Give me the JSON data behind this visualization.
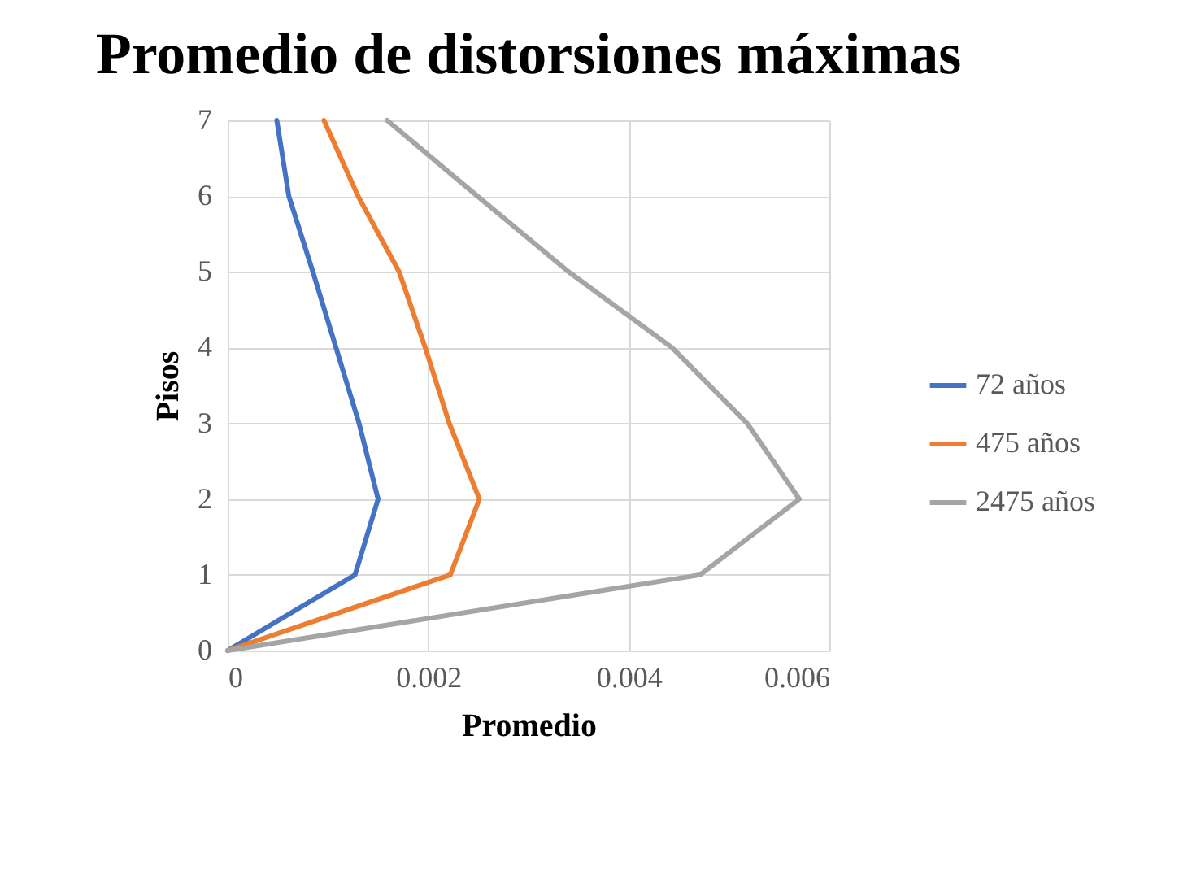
{
  "chart_data": {
    "type": "line",
    "title": "Promedio de distorsiones máximas",
    "xlabel": "Promedio",
    "ylabel": "Pisos",
    "series": [
      {
        "name": "72 años",
        "color": "#4472c4",
        "x": [
          0,
          0.00127,
          0.0015,
          0.00131,
          0.00108,
          0.00085,
          0.00061,
          0.00049
        ],
        "values": [
          0,
          1,
          2,
          3,
          4,
          5,
          6,
          7
        ]
      },
      {
        "name": "475 años",
        "color": "#ed7d31",
        "x": [
          0,
          0.00222,
          0.00251,
          0.00221,
          0.00197,
          0.00171,
          0.0013,
          0.00096
        ],
        "values": [
          0,
          1,
          2,
          3,
          4,
          5,
          6,
          7
        ]
      },
      {
        "name": "2475 años",
        "color": "#a5a5a5",
        "x": [
          0,
          0.00471,
          0.0057,
          0.00518,
          0.00443,
          0.0034,
          0.00249,
          0.00159
        ],
        "values": [
          0,
          1,
          2,
          3,
          4,
          5,
          6,
          7
        ]
      }
    ],
    "xlim": [
      0,
      0.006
    ],
    "xticks": [
      {
        "value": 0,
        "label": "0"
      },
      0.002,
      0.004,
      0.006
    ],
    "ylim": [
      0,
      7
    ],
    "yticks": [
      0,
      1,
      2,
      3,
      4,
      5,
      6,
      7
    ],
    "grid": true,
    "legend": "right",
    "marker": "none",
    "line_style": "solid"
  }
}
